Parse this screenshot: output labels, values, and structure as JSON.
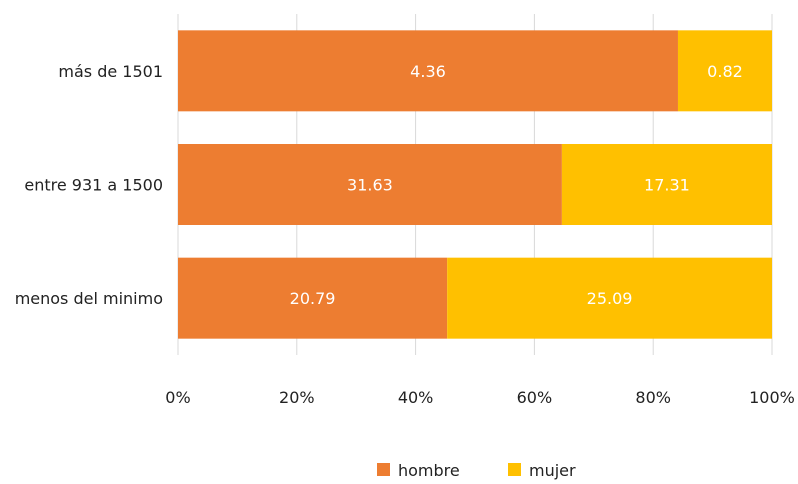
{
  "chart_data": {
    "type": "bar",
    "orientation": "horizontal",
    "stacked": "percent",
    "categories": [
      "más de 1501",
      "entre 931 a 1500",
      "menos del minimo"
    ],
    "series": [
      {
        "name": "hombre",
        "values": [
          4.36,
          31.63,
          20.79
        ],
        "color": "#ED7D31"
      },
      {
        "name": "mujer",
        "values": [
          0.82,
          17.31,
          25.09
        ],
        "color": "#FFC000"
      }
    ],
    "x_ticks": [
      "0%",
      "20%",
      "40%",
      "60%",
      "80%",
      "100%"
    ],
    "xlim": [
      0,
      100
    ],
    "grid": true,
    "legend": "bottom"
  }
}
